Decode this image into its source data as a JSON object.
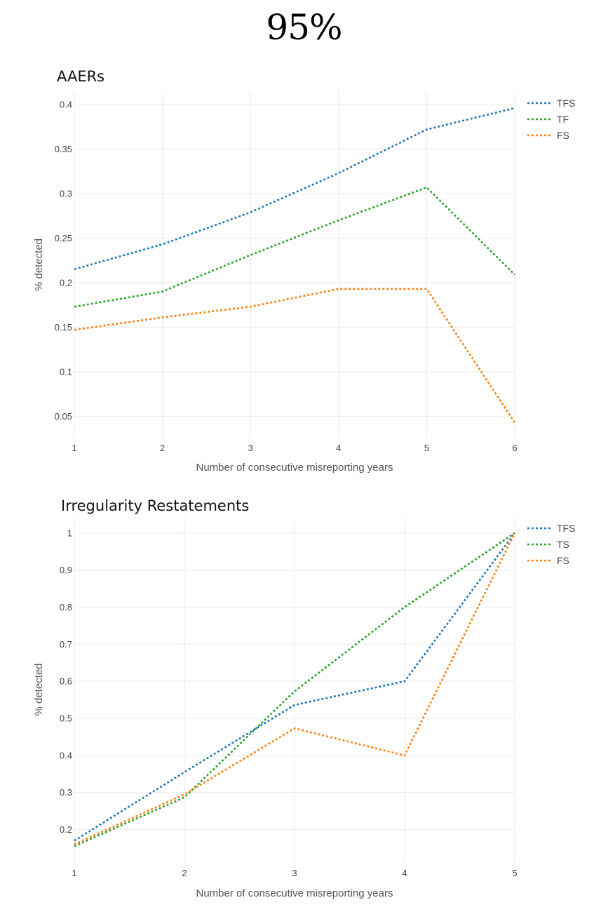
{
  "page": {
    "title": "95%"
  },
  "chart_data": [
    {
      "type": "line",
      "title": "AAERs",
      "xlabel": "Number of consecutive misreporting years",
      "ylabel": "% detected",
      "x": [
        1,
        2,
        3,
        4,
        5,
        6
      ],
      "xticks": [
        "1",
        "2",
        "3",
        "4",
        "5",
        "6"
      ],
      "xlim": [
        1,
        6
      ],
      "ylim": [
        0.025,
        0.415
      ],
      "yticks": [
        0.05,
        0.1,
        0.15,
        0.2,
        0.25,
        0.3,
        0.35,
        0.4
      ],
      "ytick_labels": [
        "0.05",
        "0.1",
        "0.15",
        "0.2",
        "0.25",
        "0.3",
        "0.35",
        "0.4"
      ],
      "grid": true,
      "legend_position": "top-right",
      "line_style": "dotted",
      "series": [
        {
          "name": "TFS",
          "color": "#1f77b4",
          "values": [
            0.215,
            0.243,
            0.279,
            0.323,
            0.372,
            0.396
          ]
        },
        {
          "name": "TF",
          "color": "#2ca02c",
          "values": [
            0.173,
            0.19,
            0.231,
            0.27,
            0.307,
            0.209
          ]
        },
        {
          "name": "FS",
          "color": "#ff7f0e",
          "values": [
            0.147,
            0.161,
            0.173,
            0.193,
            0.193,
            0.043
          ]
        }
      ]
    },
    {
      "type": "line",
      "title": "Irregularity Restatements",
      "xlabel": "Number of consecutive misreporting years",
      "ylabel": "% detected",
      "x": [
        1,
        2,
        3,
        4,
        5
      ],
      "xticks": [
        "1",
        "2",
        "3",
        "4",
        "5"
      ],
      "xlim": [
        1,
        5
      ],
      "ylim": [
        0.11,
        1.045
      ],
      "yticks": [
        0.2,
        0.3,
        0.4,
        0.5,
        0.6,
        0.7,
        0.8,
        0.9,
        1.0
      ],
      "ytick_labels": [
        "0.2",
        "0.3",
        "0.4",
        "0.5",
        "0.6",
        "0.7",
        "0.8",
        "0.9",
        "1"
      ],
      "grid": true,
      "legend_position": "top-right",
      "line_style": "dotted",
      "series": [
        {
          "name": "TFS",
          "color": "#1f77b4",
          "values": [
            0.17,
            0.355,
            0.536,
            0.6,
            1.0
          ]
        },
        {
          "name": "TS",
          "color": "#2ca02c",
          "values": [
            0.155,
            0.287,
            0.573,
            0.8,
            1.0
          ]
        },
        {
          "name": "FS",
          "color": "#ff7f0e",
          "values": [
            0.16,
            0.295,
            0.473,
            0.4,
            1.0
          ]
        }
      ]
    }
  ]
}
